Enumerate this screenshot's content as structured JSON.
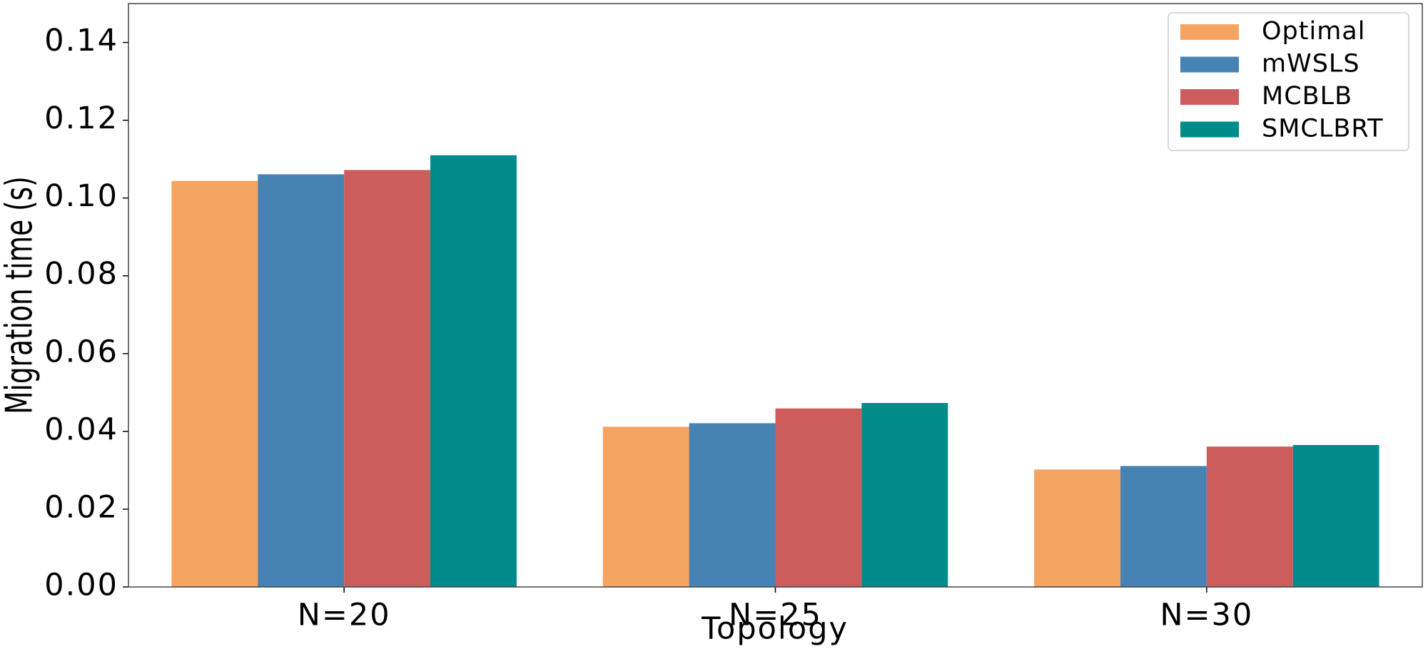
{
  "chart_data": {
    "type": "bar",
    "xlabel": "Topology",
    "ylabel": "Migration time (s)",
    "categories": [
      "N=20",
      "N=25",
      "N=30"
    ],
    "series": [
      {
        "name": "Optimal",
        "color": "#f4a460",
        "values": [
          0.1044,
          0.0412,
          0.0302
        ]
      },
      {
        "name": "mWSLS",
        "color": "#4682b4",
        "values": [
          0.1061,
          0.0421,
          0.0311
        ]
      },
      {
        "name": "MCBLB",
        "color": "#cd5c5c",
        "values": [
          0.1072,
          0.0459,
          0.0361
        ]
      },
      {
        "name": "SMCLBRT",
        "color": "#008b8b",
        "values": [
          0.111,
          0.0473,
          0.0365
        ]
      }
    ],
    "ylim": [
      0,
      0.15
    ],
    "yticks": [
      {
        "value": 0,
        "label": "0.00"
      },
      {
        "value": 0.02,
        "label": "0.02"
      },
      {
        "value": 0.04,
        "label": "0.04"
      },
      {
        "value": 0.06,
        "label": "0.06"
      },
      {
        "value": 0.08,
        "label": "0.08"
      },
      {
        "value": 0.1,
        "label": "0.10"
      },
      {
        "value": 0.12,
        "label": "0.12"
      },
      {
        "value": 0.14,
        "label": "0.14"
      }
    ],
    "grid": false,
    "legend": "upper right"
  }
}
